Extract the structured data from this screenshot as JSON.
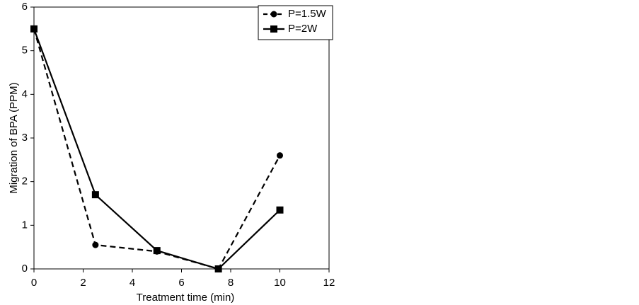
{
  "chart_data": {
    "type": "line",
    "x_label": "Treatment time (min)",
    "y_label": "Migration of BPA (PPM)",
    "xlim": [
      0,
      12
    ],
    "xticks": [
      0,
      2,
      4,
      6,
      8,
      10,
      12
    ],
    "ylim": [
      0,
      6
    ],
    "yticks": [
      0,
      1,
      2,
      3,
      4,
      5,
      6
    ],
    "legend": "upper right",
    "series": [
      {
        "name": "P=1.5W",
        "color": "#000000",
        "linestyle": "dashed",
        "marker": "circle",
        "x": [
          0,
          2.5,
          5,
          7.5,
          10
        ],
        "values": [
          5.5,
          0.55,
          0.4,
          0,
          2.6
        ]
      },
      {
        "name": "P=2W",
        "color": "#000000",
        "linestyle": "solid",
        "marker": "square",
        "x": [
          0,
          2.5,
          5,
          7.5,
          10
        ],
        "values": [
          5.5,
          1.7,
          0.42,
          0,
          1.35
        ]
      }
    ]
  }
}
